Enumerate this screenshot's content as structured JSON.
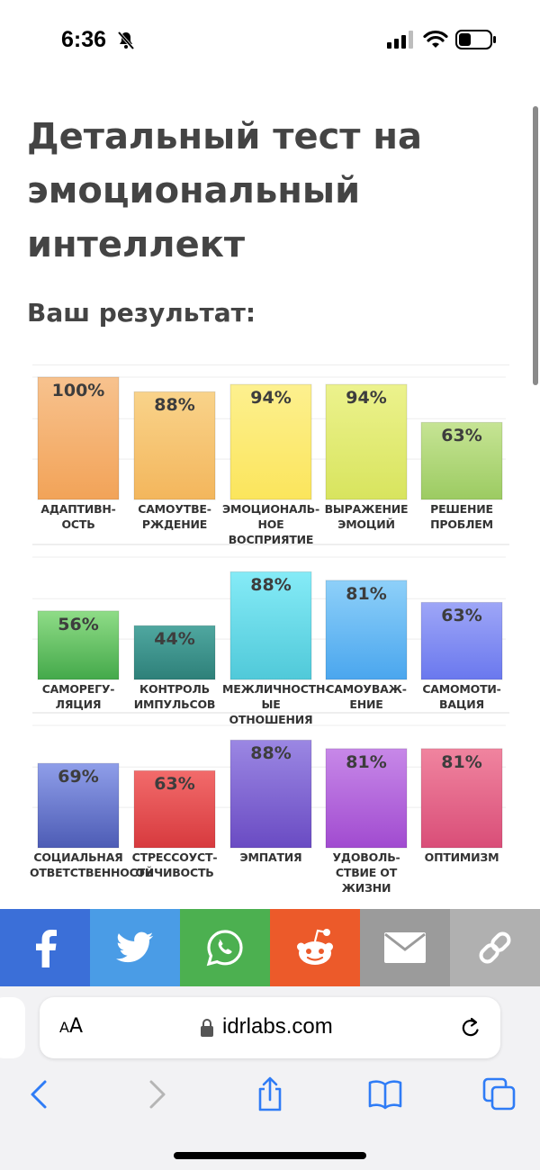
{
  "status_bar": {
    "time": "6:36",
    "icons": [
      "bell-slash-icon",
      "signal-icon",
      "wifi-icon",
      "battery-icon"
    ]
  },
  "page": {
    "title": "Детальный тест на эмоциональный интеллект",
    "result_heading": "Ваш результат:"
  },
  "chart_data": {
    "type": "bar",
    "ylim": [
      0,
      100
    ],
    "grid": true,
    "rows": [
      {
        "categories": [
          "АДАПТИВН-\nОСТЬ",
          "САМОУТВЕ-\nРЖДЕНИЕ",
          "ЭМОЦИОНАЛЬ-\nНОЕ ВОСПРИЯТИЕ",
          "ВЫРАЖЕНИЕ\nЭМОЦИЙ",
          "РЕШЕНИЕ\nПРОБЛЕМ"
        ],
        "values": [
          100,
          88,
          94,
          94,
          63
        ],
        "value_labels": [
          "100%",
          "88%",
          "94%",
          "94%",
          "63%"
        ],
        "colors": [
          [
            "#f7c28e",
            "#f2a358"
          ],
          [
            "#f9d38a",
            "#f3b65c"
          ],
          [
            "#fdf08f",
            "#fbe55c"
          ],
          [
            "#ecf28d",
            "#d8e45e"
          ],
          [
            "#c6e494",
            "#9ccb62"
          ]
        ]
      },
      {
        "categories": [
          "САМОРЕГУ-\nЛЯЦИЯ",
          "КОНТРОЛЬ\nИМПУЛЬСОВ",
          "МЕЖЛИЧНОСТН-\nЫЕ ОТНОШЕНИЯ",
          "САМОУВАЖ-\nЕНИЕ",
          "САМОМОТИ-\nВАЦИЯ"
        ],
        "values": [
          56,
          44,
          88,
          81,
          63
        ],
        "value_labels": [
          "56%",
          "44%",
          "88%",
          "81%",
          "63%"
        ],
        "colors": [
          [
            "#8fdc87",
            "#44a94a"
          ],
          [
            "#4fa7a0",
            "#2e8079"
          ],
          [
            "#85ebf7",
            "#50c9d9"
          ],
          [
            "#8ed0f9",
            "#4aa6ee"
          ],
          [
            "#9ea6f7",
            "#6a78ee"
          ]
        ]
      },
      {
        "categories": [
          "СОЦИАЛЬНАЯ\nОТВЕТСТВЕННОСТЬ",
          "СТРЕССОУСТ-\nОЙЧИВОСТЬ",
          "ЭМПАТИЯ",
          "УДОВОЛЬ-\nСТВИЕ ОТ ЖИЗНИ",
          "ОПТИМИЗМ"
        ],
        "values": [
          69,
          63,
          88,
          81,
          81
        ],
        "value_labels": [
          "69%",
          "63%",
          "88%",
          "81%",
          "81%"
        ],
        "colors": [
          [
            "#8f9ee9",
            "#4d5cb5"
          ],
          [
            "#f26b6b",
            "#d73a3e"
          ],
          [
            "#9b87e3",
            "#6a4bc3"
          ],
          [
            "#c788e8",
            "#a14bd0"
          ],
          [
            "#f0849f",
            "#d94e78"
          ]
        ]
      }
    ]
  },
  "share_bar": [
    {
      "name": "facebook",
      "icon": "facebook-icon",
      "color": "#3b6fd8"
    },
    {
      "name": "twitter",
      "icon": "twitter-icon",
      "color": "#4a9ce6"
    },
    {
      "name": "whatsapp",
      "icon": "whatsapp-icon",
      "color": "#4cb050"
    },
    {
      "name": "reddit",
      "icon": "reddit-icon",
      "color": "#ec5a2a"
    },
    {
      "name": "email",
      "icon": "email-icon",
      "color": "#9b9b9b"
    },
    {
      "name": "link",
      "icon": "link-icon",
      "color": "#b0b0b0"
    }
  ],
  "browser": {
    "aa_label": "AA",
    "url": "idrlabs.com",
    "nav_icons": [
      "back-icon",
      "forward-icon",
      "share-icon",
      "bookmarks-icon",
      "tabs-icon"
    ]
  }
}
